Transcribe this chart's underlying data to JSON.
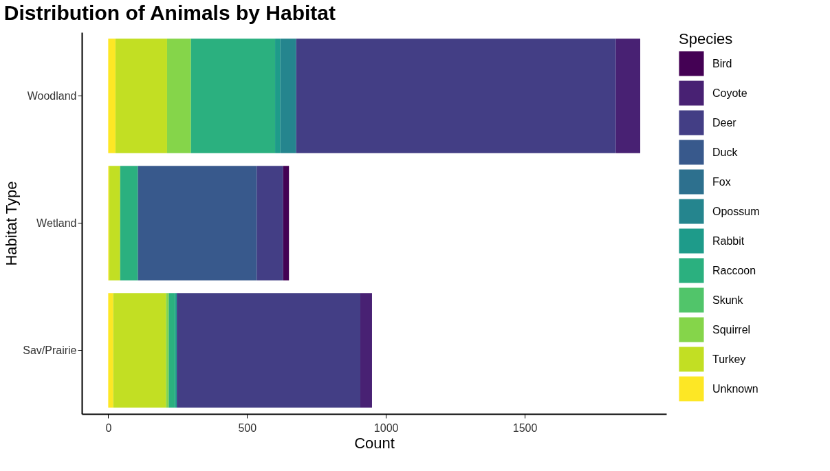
{
  "chart_data": {
    "type": "bar",
    "title": "Distribution of Animals by Habitat",
    "xlabel": "Count",
    "ylabel": "Habitat Type",
    "legend_title": "Species",
    "orientation": "horizontal",
    "stacked": true,
    "legend": "right",
    "grid": false,
    "categories": [
      "Woodland",
      "Wetland",
      "Sav/Prairie"
    ],
    "xlim": [
      -95,
      2010
    ],
    "xticks": [
      0,
      500,
      1000,
      1500
    ],
    "series": [
      {
        "name": "Unknown",
        "color": "#fde725",
        "values": [
          26,
          3,
          18
        ]
      },
      {
        "name": "Turkey",
        "color": "#c2df23",
        "values": [
          186,
          40,
          190
        ]
      },
      {
        "name": "Squirrel",
        "color": "#85d54a",
        "values": [
          86,
          null,
          10
        ]
      },
      {
        "name": "Skunk",
        "color": "#51c56a",
        "values": [
          null,
          null,
          null
        ]
      },
      {
        "name": "Raccoon",
        "color": "#2bb07f",
        "values": [
          303,
          64,
          23
        ]
      },
      {
        "name": "Rabbit",
        "color": "#1e9b8a",
        "values": [
          19,
          null,
          6
        ]
      },
      {
        "name": "Opossum",
        "color": "#25858e",
        "values": [
          57,
          null,
          null
        ]
      },
      {
        "name": "Fox",
        "color": "#2d708e",
        "values": [
          null,
          null,
          null
        ]
      },
      {
        "name": "Duck",
        "color": "#38598c",
        "values": [
          null,
          428,
          null
        ]
      },
      {
        "name": "Deer",
        "color": "#433e85",
        "values": [
          1151,
          95,
          661
        ]
      },
      {
        "name": "Coyote",
        "color": "#482173",
        "values": [
          88,
          null,
          42
        ]
      },
      {
        "name": "Bird",
        "color": "#440154",
        "values": [
          null,
          21,
          null
        ]
      }
    ]
  }
}
